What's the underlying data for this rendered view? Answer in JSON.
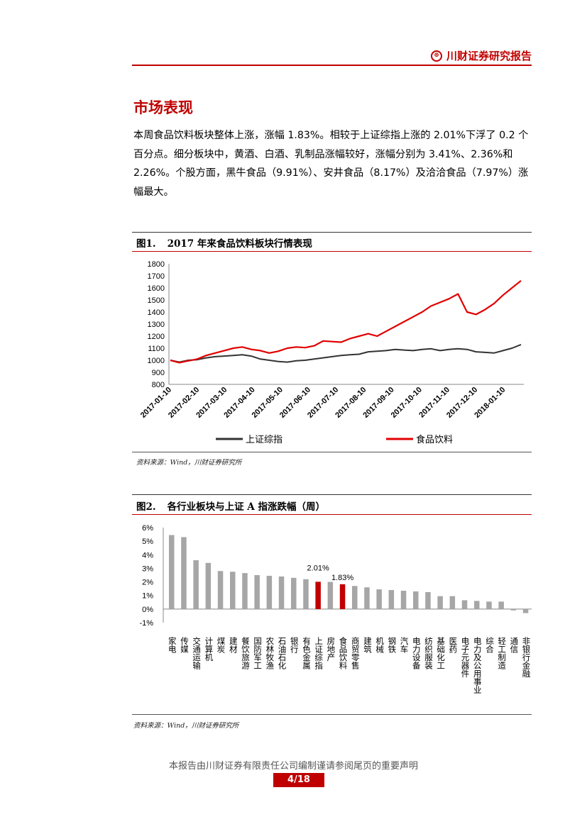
{
  "header": {
    "brand": "川财证券研究报告",
    "logo_icon": "chuancai-logo-icon",
    "accent": "#c00000"
  },
  "section_title": "市场表现",
  "paragraph": "本周食品饮料板块整体上涨，涨幅 1.83%。相较于上证综指上涨的 2.01%下浮了 0.2 个百分点。细分板块中，黄酒、白酒、乳制品涨幅较好，涨幅分别为 3.41%、2.36%和 2.26%。个股方面，黑牛食品（9.91%）、安井食品（8.17%）及洽洽食品（7.97%）涨幅最大。",
  "figure1": {
    "num": "图1.",
    "title": "2017 年来食品饮料板块行情表现",
    "source": "资料来源：Wind，川财证券研究所"
  },
  "figure2": {
    "num": "图2.",
    "title": "各行业板块与上证 A 指涨跌幅（周）",
    "source": "资料来源：Wind，川财证券研究所"
  },
  "footer": {
    "disclaimer": "本报告由川财证券有限责任公司编制谨请参阅尾页的重要声明",
    "page": "4/18"
  },
  "chart_data": [
    {
      "type": "line",
      "title": "2017 年来食品饮料板块行情表现",
      "ylim": [
        800,
        1800
      ],
      "yticks": [
        800,
        900,
        1000,
        1100,
        1200,
        1300,
        1400,
        1500,
        1600,
        1700,
        1800
      ],
      "xticks": [
        "2017-01-10",
        "2017-02-10",
        "2017-03-10",
        "2017-04-10",
        "2017-05-10",
        "2017-06-10",
        "2017-07-10",
        "2017-08-10",
        "2017-09-10",
        "2017-10-10",
        "2017-11-10",
        "2017-12-10",
        "2018-01-10"
      ],
      "legend_position": "bottom",
      "series": [
        {
          "name": "上证综指",
          "color": "#333333",
          "values": [
            1000,
            985,
            1000,
            1005,
            1020,
            1030,
            1035,
            1040,
            1045,
            1035,
            1010,
            1000,
            990,
            985,
            995,
            1000,
            1010,
            1020,
            1030,
            1040,
            1045,
            1050,
            1070,
            1075,
            1080,
            1090,
            1085,
            1080,
            1090,
            1095,
            1080,
            1090,
            1095,
            1090,
            1070,
            1065,
            1060,
            1080,
            1100,
            1130
          ]
        },
        {
          "name": "食品饮料",
          "color": "#e00000",
          "values": [
            1000,
            980,
            995,
            1010,
            1040,
            1060,
            1080,
            1100,
            1110,
            1090,
            1080,
            1060,
            1075,
            1100,
            1110,
            1105,
            1120,
            1160,
            1155,
            1150,
            1180,
            1200,
            1220,
            1200,
            1240,
            1280,
            1320,
            1360,
            1400,
            1450,
            1480,
            1510,
            1550,
            1400,
            1380,
            1420,
            1470,
            1540,
            1600,
            1660
          ]
        }
      ]
    },
    {
      "type": "bar",
      "title": "各行业板块与上证 A 指涨跌幅（周）",
      "ylim": [
        -1,
        6
      ],
      "yticks": [
        "-1%",
        "0%",
        "1%",
        "2%",
        "3%",
        "4%",
        "5%",
        "6%"
      ],
      "bar_color": "#a6a6a6",
      "highlight_color": "#c00000",
      "categories": [
        "家电",
        "传媒",
        "交通运输",
        "计算机",
        "煤炭",
        "建材",
        "餐饮旅游",
        "国防军工",
        "农林牧渔",
        "石油石化",
        "银行",
        "有色金属",
        "上证综指",
        "房地产",
        "食品饮料",
        "商贸零售",
        "建筑",
        "机械",
        "钢铁",
        "汽车",
        "电力设备",
        "纺织服装",
        "基础化工",
        "医药",
        "电子元器件",
        "电力及公用事业",
        "综合",
        "轻工制造",
        "通信",
        "非银行金融"
      ],
      "values": [
        5.45,
        5.3,
        3.6,
        3.4,
        2.8,
        2.75,
        2.65,
        2.5,
        2.45,
        2.4,
        2.3,
        2.2,
        2.01,
        2.0,
        1.83,
        1.7,
        1.6,
        1.45,
        1.4,
        1.35,
        1.3,
        1.25,
        0.95,
        0.95,
        0.65,
        0.6,
        0.55,
        0.55,
        -0.1,
        -0.3
      ],
      "highlighted": [
        "上证综指",
        "食品饮料"
      ],
      "data_labels": {
        "上证综指": "2.01%",
        "食品饮料": "1.83%"
      }
    }
  ]
}
